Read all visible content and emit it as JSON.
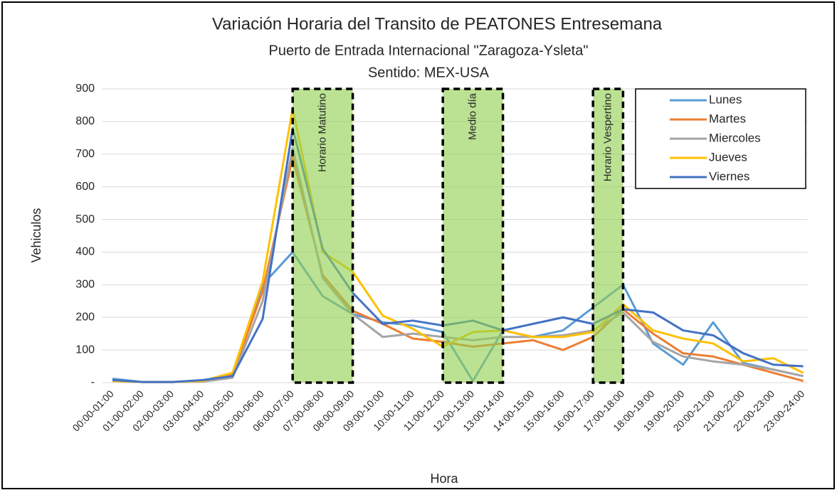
{
  "chart_data": {
    "type": "line",
    "title": "Variación Horaria del Transito de PEATONES Entresemana",
    "subtitle": [
      "Puerto de Entrada Internacional \"Zaragoza-Ysleta\"",
      "Sentido: MEX-USA"
    ],
    "x_label": "Hora",
    "y_label": "Vehiculos",
    "categories": [
      "00:00-01:00",
      "01:00-02:00",
      "02:00-03:00",
      "03:00-04:00",
      "04:00-05:00",
      "05:00-06:00",
      "06:00-07:00",
      "07:00-08:00",
      "08:00-09:00",
      "09:00-10:00",
      "10:00-11:00",
      "11:00-12:00",
      "12:00-13:00",
      "13:00-14:00",
      "14:00-15:00",
      "15:00-16:00",
      "16:00-17:00",
      "17:00-18:00",
      "18:00-19:00",
      "19:00-20:00",
      "20:00-21:00",
      "21:00-22:00",
      "22:00-23:00",
      "23:00-24:00"
    ],
    "series": [
      {
        "name": "Lunes",
        "color": "#5b9bd5",
        "values": [
          12,
          2,
          2,
          5,
          30,
          300,
          400,
          265,
          210,
          185,
          175,
          155,
          5,
          160,
          140,
          160,
          230,
          300,
          120,
          55,
          185,
          60,
          40,
          20
        ]
      },
      {
        "name": "Martes",
        "color": "#ed7d31",
        "values": [
          5,
          2,
          2,
          5,
          25,
          280,
          690,
          330,
          220,
          180,
          135,
          125,
          110,
          120,
          130,
          100,
          140,
          225,
          150,
          90,
          80,
          55,
          30,
          5
        ]
      },
      {
        "name": "Miercoles",
        "color": "#a5a5a5",
        "values": [
          5,
          2,
          2,
          3,
          15,
          250,
          720,
          320,
          210,
          140,
          150,
          140,
          130,
          140,
          140,
          145,
          160,
          215,
          125,
          80,
          65,
          55,
          40,
          20
        ]
      },
      {
        "name": "Jueves",
        "color": "#ffc000",
        "values": [
          5,
          2,
          2,
          5,
          30,
          310,
          840,
          400,
          340,
          205,
          165,
          110,
          155,
          160,
          140,
          140,
          155,
          240,
          160,
          135,
          120,
          65,
          75,
          30
        ]
      },
      {
        "name": "Viernes",
        "color": "#4472c4",
        "values": [
          8,
          2,
          2,
          8,
          20,
          195,
          780,
          410,
          275,
          180,
          190,
          175,
          190,
          160,
          180,
          200,
          180,
          225,
          215,
          160,
          145,
          90,
          55,
          50
        ]
      }
    ],
    "ylim": [
      0,
      900
    ],
    "yticks": [
      {
        "value": 0,
        "label": "-"
      },
      100,
      200,
      300,
      400,
      500,
      600,
      700,
      800,
      900
    ],
    "grid": true,
    "legend": "top-right",
    "bands": [
      {
        "label": "Horario Matutino",
        "from": 6,
        "to": 8
      },
      {
        "label": "Medio día",
        "from": 11,
        "to": 13
      },
      {
        "label": "Horario  Vespertino",
        "from": 16,
        "to": 17
      }
    ]
  }
}
